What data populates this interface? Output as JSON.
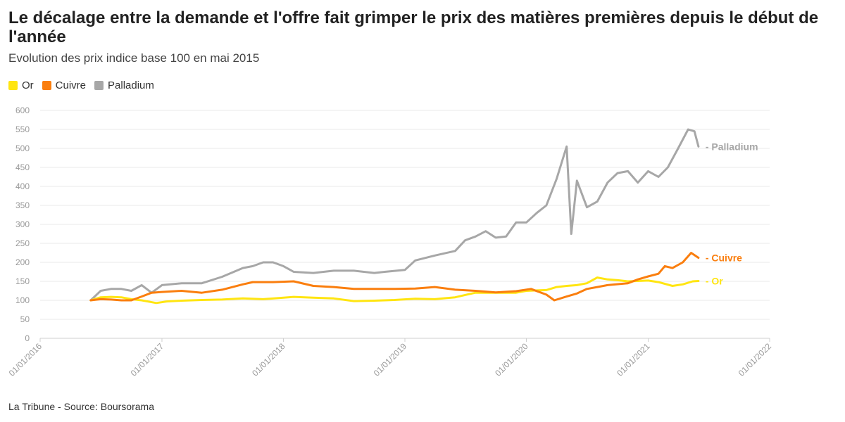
{
  "header": {
    "title": "Le décalage entre la demande et l'offre fait grimper le prix des matières premières depuis le début de l'année",
    "subtitle": "Evolution des prix indice base 100 en mai 2015"
  },
  "footer": {
    "source": "La Tribune - Source: Boursorama"
  },
  "legend": [
    {
      "label": "Or",
      "color": "#ffe511"
    },
    {
      "label": "Cuivre",
      "color": "#fa7e0e"
    },
    {
      "label": "Palladium",
      "color": "#a7a7a7"
    }
  ],
  "chart_data": {
    "type": "line",
    "title": "Le décalage entre la demande et l'offre fait grimper le prix des matières premières depuis le début de l'année",
    "subtitle": "Evolution des prix indice base 100 en mai 2015",
    "ylim": [
      0,
      600
    ],
    "yticks": [
      0,
      50,
      100,
      150,
      200,
      250,
      300,
      350,
      400,
      450,
      500,
      550,
      600
    ],
    "xlim": [
      "2016-01-01",
      "2022-01-01"
    ],
    "xticks": [
      "01/01/2016",
      "01/01/2017",
      "01/01/2018",
      "01/01/2019",
      "01/01/2020",
      "01/01/2021",
      "01/01/2022"
    ],
    "grid": true,
    "legend_position": "top-left",
    "series": [
      {
        "name": "Or",
        "color": "#ffe511",
        "end_label": "Or",
        "points": [
          [
            "2016-06-01",
            100
          ],
          [
            "2016-07-01",
            108
          ],
          [
            "2016-08-01",
            109
          ],
          [
            "2016-09-01",
            108
          ],
          [
            "2016-10-01",
            103
          ],
          [
            "2016-11-01",
            100
          ],
          [
            "2016-12-15",
            93
          ],
          [
            "2017-01-15",
            97
          ],
          [
            "2017-03-01",
            99
          ],
          [
            "2017-05-01",
            101
          ],
          [
            "2017-07-01",
            102
          ],
          [
            "2017-09-01",
            105
          ],
          [
            "2017-11-01",
            103
          ],
          [
            "2018-01-01",
            107
          ],
          [
            "2018-02-01",
            109
          ],
          [
            "2018-04-01",
            107
          ],
          [
            "2018-06-01",
            105
          ],
          [
            "2018-08-01",
            98
          ],
          [
            "2018-10-01",
            99
          ],
          [
            "2018-12-01",
            101
          ],
          [
            "2019-02-01",
            104
          ],
          [
            "2019-04-01",
            103
          ],
          [
            "2019-06-01",
            108
          ],
          [
            "2019-07-01",
            114
          ],
          [
            "2019-08-01",
            120
          ],
          [
            "2019-10-01",
            120
          ],
          [
            "2019-12-01",
            120
          ],
          [
            "2020-01-01",
            125
          ],
          [
            "2020-03-01",
            127
          ],
          [
            "2020-04-01",
            135
          ],
          [
            "2020-05-01",
            138
          ],
          [
            "2020-06-01",
            140
          ],
          [
            "2020-07-01",
            145
          ],
          [
            "2020-08-01",
            160
          ],
          [
            "2020-09-01",
            155
          ],
          [
            "2020-10-01",
            153
          ],
          [
            "2020-11-01",
            150
          ],
          [
            "2020-12-01",
            151
          ],
          [
            "2021-01-01",
            152
          ],
          [
            "2021-02-01",
            148
          ],
          [
            "2021-03-15",
            138
          ],
          [
            "2021-04-15",
            142
          ],
          [
            "2021-05-15",
            150
          ],
          [
            "2021-06-01",
            151
          ]
        ]
      },
      {
        "name": "Cuivre",
        "color": "#fa7e0e",
        "end_label": "Cuivre",
        "points": [
          [
            "2016-06-01",
            100
          ],
          [
            "2016-07-01",
            103
          ],
          [
            "2016-08-01",
            102
          ],
          [
            "2016-09-01",
            100
          ],
          [
            "2016-10-01",
            100
          ],
          [
            "2016-11-01",
            110
          ],
          [
            "2016-12-01",
            120
          ],
          [
            "2017-01-01",
            122
          ],
          [
            "2017-03-01",
            125
          ],
          [
            "2017-05-01",
            120
          ],
          [
            "2017-07-01",
            128
          ],
          [
            "2017-09-01",
            142
          ],
          [
            "2017-10-01",
            148
          ],
          [
            "2017-12-01",
            148
          ],
          [
            "2018-02-01",
            150
          ],
          [
            "2018-04-01",
            138
          ],
          [
            "2018-06-01",
            135
          ],
          [
            "2018-08-01",
            130
          ],
          [
            "2018-10-01",
            130
          ],
          [
            "2018-12-01",
            130
          ],
          [
            "2019-02-01",
            131
          ],
          [
            "2019-04-01",
            135
          ],
          [
            "2019-06-01",
            128
          ],
          [
            "2019-08-01",
            125
          ],
          [
            "2019-10-01",
            121
          ],
          [
            "2019-12-01",
            124
          ],
          [
            "2020-01-15",
            130
          ],
          [
            "2020-03-01",
            115
          ],
          [
            "2020-03-25",
            100
          ],
          [
            "2020-05-01",
            110
          ],
          [
            "2020-06-01",
            118
          ],
          [
            "2020-07-01",
            130
          ],
          [
            "2020-08-01",
            135
          ],
          [
            "2020-09-01",
            140
          ],
          [
            "2020-11-01",
            145
          ],
          [
            "2020-12-01",
            155
          ],
          [
            "2021-01-01",
            163
          ],
          [
            "2021-02-01",
            170
          ],
          [
            "2021-02-20",
            190
          ],
          [
            "2021-03-15",
            185
          ],
          [
            "2021-04-15",
            200
          ],
          [
            "2021-05-10",
            225
          ],
          [
            "2021-06-01",
            212
          ]
        ]
      },
      {
        "name": "Palladium",
        "color": "#a7a7a7",
        "end_label": "Palladium",
        "points": [
          [
            "2016-06-01",
            100
          ],
          [
            "2016-07-01",
            125
          ],
          [
            "2016-08-01",
            130
          ],
          [
            "2016-09-01",
            130
          ],
          [
            "2016-10-01",
            125
          ],
          [
            "2016-11-01",
            140
          ],
          [
            "2016-12-01",
            120
          ],
          [
            "2017-01-01",
            140
          ],
          [
            "2017-03-01",
            145
          ],
          [
            "2017-05-01",
            145
          ],
          [
            "2017-07-01",
            162
          ],
          [
            "2017-09-01",
            185
          ],
          [
            "2017-10-01",
            190
          ],
          [
            "2017-11-01",
            200
          ],
          [
            "2017-12-01",
            200
          ],
          [
            "2018-01-01",
            190
          ],
          [
            "2018-02-01",
            175
          ],
          [
            "2018-04-01",
            172
          ],
          [
            "2018-06-01",
            178
          ],
          [
            "2018-08-01",
            178
          ],
          [
            "2018-10-01",
            172
          ],
          [
            "2018-11-01",
            175
          ],
          [
            "2019-01-01",
            180
          ],
          [
            "2019-02-01",
            205
          ],
          [
            "2019-04-01",
            218
          ],
          [
            "2019-06-01",
            230
          ],
          [
            "2019-07-01",
            258
          ],
          [
            "2019-08-01",
            268
          ],
          [
            "2019-09-01",
            282
          ],
          [
            "2019-10-01",
            265
          ],
          [
            "2019-11-01",
            268
          ],
          [
            "2019-12-01",
            305
          ],
          [
            "2020-01-01",
            305
          ],
          [
            "2020-02-01",
            330
          ],
          [
            "2020-03-01",
            350
          ],
          [
            "2020-04-01",
            420
          ],
          [
            "2020-05-01",
            505
          ],
          [
            "2020-05-15",
            275
          ],
          [
            "2020-06-01",
            415
          ],
          [
            "2020-07-01",
            345
          ],
          [
            "2020-08-01",
            360
          ],
          [
            "2020-09-01",
            410
          ],
          [
            "2020-10-01",
            435
          ],
          [
            "2020-11-01",
            440
          ],
          [
            "2020-12-01",
            410
          ],
          [
            "2021-01-01",
            440
          ],
          [
            "2021-02-01",
            425
          ],
          [
            "2021-03-01",
            450
          ],
          [
            "2021-04-01",
            500
          ],
          [
            "2021-05-01",
            550
          ],
          [
            "2021-05-20",
            545
          ],
          [
            "2021-06-01",
            505
          ]
        ]
      }
    ]
  }
}
